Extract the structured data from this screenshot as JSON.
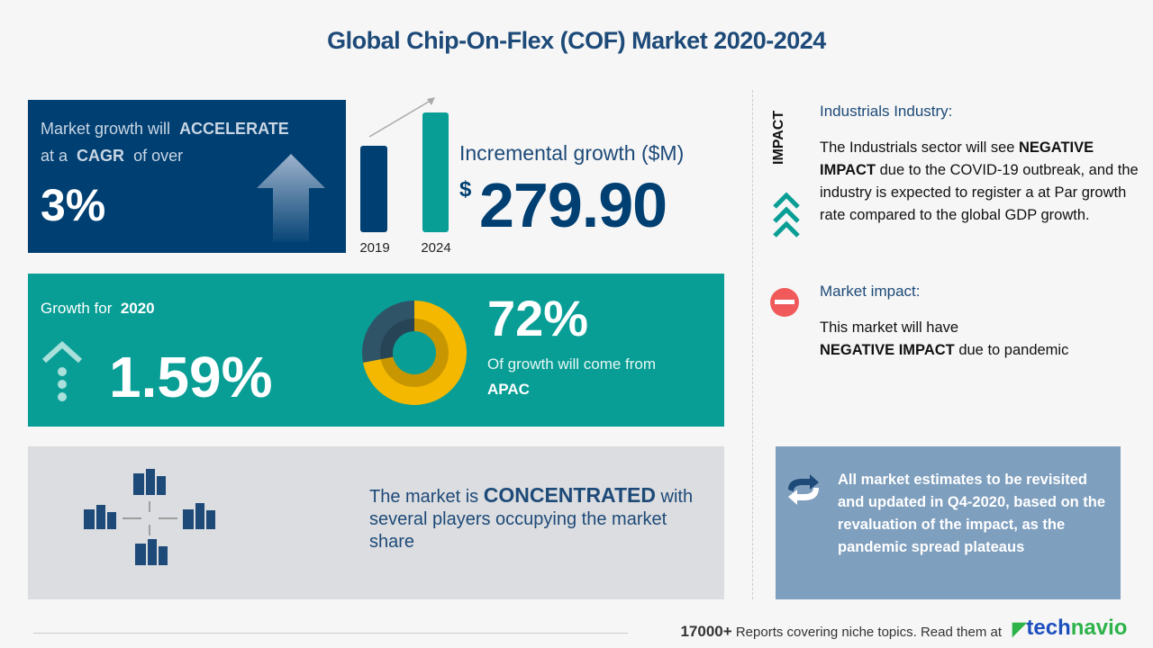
{
  "title": "Global Chip-On-Flex (COF) Market 2020-2024",
  "cagr": {
    "line1_pre": "Market growth will",
    "line1_bold": "ACCELERATE",
    "line2_pre": "at a",
    "line2_bold": "CAGR",
    "line2_post": "of over",
    "value": "3%"
  },
  "incremental": {
    "bars": [
      {
        "label": "2019"
      },
      {
        "label": "2024"
      }
    ],
    "heading": "Incremental growth ($M)",
    "currency": "$",
    "value": "279.90"
  },
  "growth2020": {
    "label": "Growth for",
    "year": "2020",
    "value": "1.59%"
  },
  "region": {
    "share": "72%",
    "share_value": 72,
    "text": "Of growth will come from",
    "region": "APAC"
  },
  "concentration": {
    "pre": "The market is",
    "bold": "CONCENTRATED",
    "rest": "with several players occupying the market share"
  },
  "impact": {
    "vertical_label": "IMPACT",
    "industry_heading": "Industrials Industry:",
    "industry_pre": "The Industrials sector will see",
    "industry_bold": "NEGATIVE IMPACT",
    "industry_post": "due to the COVID-19 outbreak, and the industry is expected to register a at Par growth rate compared to the global GDP growth.",
    "market_heading": "Market impact:",
    "market_pre": "This market will have",
    "market_bold": "NEGATIVE IMPACT",
    "market_post": "due to pandemic"
  },
  "note": "All market estimates to be revisited and updated in Q4-2020, based on the revaluation of the impact, as the pandemic spread plateaus",
  "footer": {
    "count": "17000+",
    "text": "Reports covering niche topics. Read them at",
    "brand_a": "tech",
    "brand_b": "navio"
  },
  "colors": {
    "navy": "#003f72",
    "teal": "#089e95",
    "yellow": "#f5b800",
    "red": "#f05a5a",
    "green": "#2db34a"
  }
}
